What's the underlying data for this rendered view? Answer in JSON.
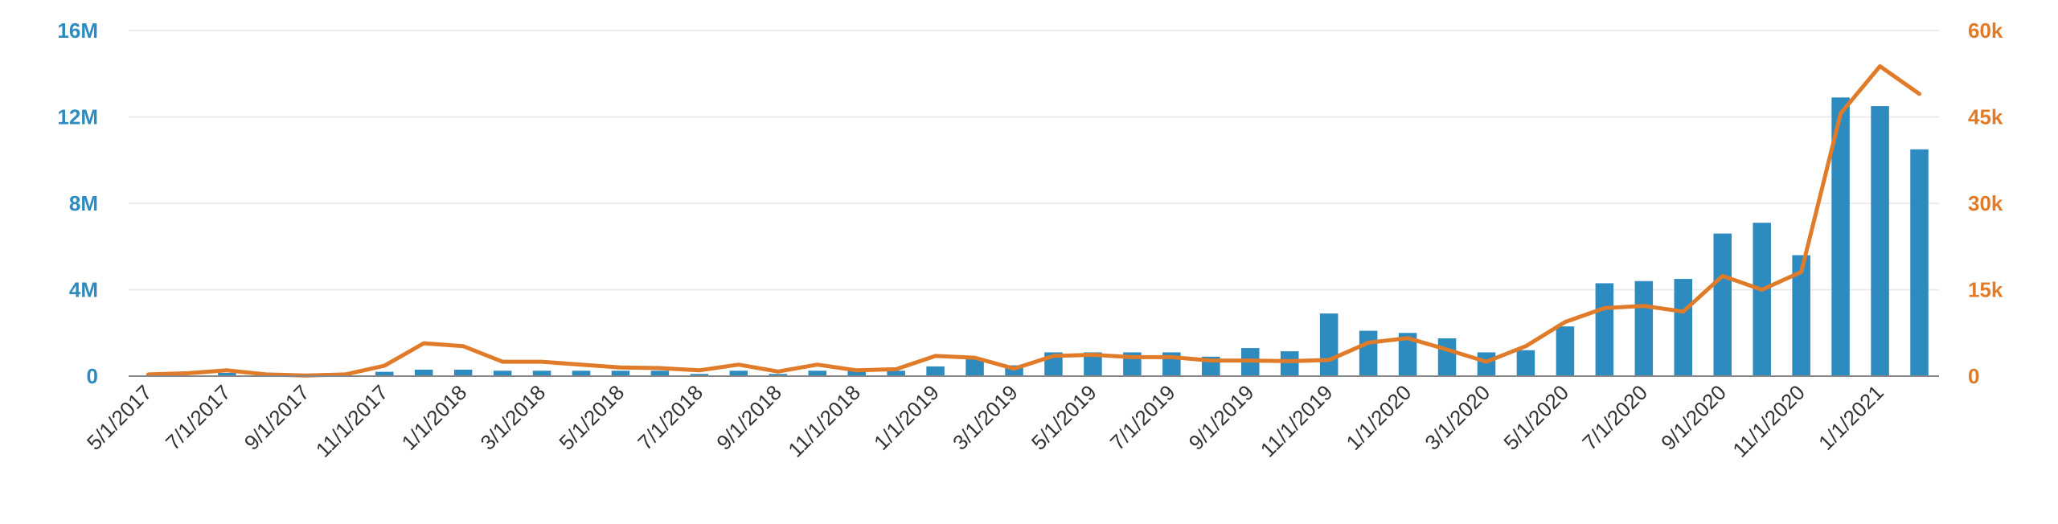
{
  "chart_data": {
    "type": "bar",
    "title": "",
    "xlabel": "",
    "ylabel": "",
    "colors": {
      "bars": "#2e8bc0",
      "line": "#e07b2a",
      "grid": "#e6e6e6",
      "axis": "#888888"
    },
    "categories": [
      "5/1/2017",
      "6/1/2017",
      "7/1/2017",
      "8/1/2017",
      "9/1/2017",
      "10/1/2017",
      "11/1/2017",
      "12/1/2017",
      "1/1/2018",
      "2/1/2018",
      "3/1/2018",
      "4/1/2018",
      "5/1/2018",
      "6/1/2018",
      "7/1/2018",
      "8/1/2018",
      "9/1/2018",
      "10/1/2018",
      "11/1/2018",
      "12/1/2018",
      "1/1/2019",
      "2/1/2019",
      "3/1/2019",
      "4/1/2019",
      "5/1/2019",
      "6/1/2019",
      "7/1/2019",
      "8/1/2019",
      "9/1/2019",
      "10/1/2019",
      "11/1/2019",
      "12/1/2019",
      "1/1/2020",
      "2/1/2020",
      "3/1/2020",
      "4/1/2020",
      "5/1/2020",
      "6/1/2020",
      "7/1/2020",
      "8/1/2020",
      "9/1/2020",
      "10/1/2020",
      "11/1/2020",
      "12/1/2020",
      "1/1/2021",
      "2/1/2021"
    ],
    "x_tick_labels": [
      "5/1/2017",
      "7/1/2017",
      "9/1/2017",
      "11/1/2017",
      "1/1/2018",
      "3/1/2018",
      "5/1/2018",
      "7/1/2018",
      "9/1/2018",
      "11/1/2018",
      "1/1/2019",
      "3/1/2019",
      "5/1/2019",
      "7/1/2019",
      "9/1/2019",
      "11/1/2019",
      "1/1/2020",
      "3/1/2020",
      "5/1/2020",
      "7/1/2020",
      "9/1/2020",
      "11/1/2020",
      "1/1/2021"
    ],
    "series": [
      {
        "axis": "left",
        "kind": "bar",
        "values": [
          20000,
          30000,
          150000,
          20000,
          10000,
          20000,
          200000,
          300000,
          300000,
          250000,
          250000,
          250000,
          250000,
          250000,
          100000,
          250000,
          100000,
          250000,
          250000,
          250000,
          450000,
          800000,
          500000,
          1100000,
          1100000,
          1100000,
          1100000,
          900000,
          1300000,
          1150000,
          2900000,
          2100000,
          2000000,
          1750000,
          1100000,
          1200000,
          2300000,
          4300000,
          4400000,
          4500000,
          6600000,
          7100000,
          5600000,
          12900000,
          12500000,
          10500000
        ]
      },
      {
        "axis": "right",
        "kind": "line",
        "values": [
          300,
          500,
          1000,
          300,
          100,
          300,
          1800,
          5700,
          5200,
          2500,
          2500,
          2000,
          1500,
          1400,
          1000,
          2000,
          800,
          2000,
          1000,
          1200,
          3500,
          3200,
          1300,
          3500,
          3700,
          3300,
          3300,
          2700,
          2700,
          2600,
          2800,
          5800,
          6600,
          4600,
          2500,
          5200,
          9400,
          11800,
          12200,
          11200,
          17400,
          15000,
          18100,
          45600,
          53800,
          49000
        ]
      }
    ],
    "y_left": {
      "ticks": [
        "0",
        "4M",
        "8M",
        "12M",
        "16M"
      ],
      "range": [
        0,
        16000000
      ]
    },
    "y_right": {
      "ticks": [
        "0",
        "15k",
        "30k",
        "45k",
        "60k"
      ],
      "range": [
        0,
        60000
      ]
    },
    "grid": true,
    "legend": "none"
  }
}
